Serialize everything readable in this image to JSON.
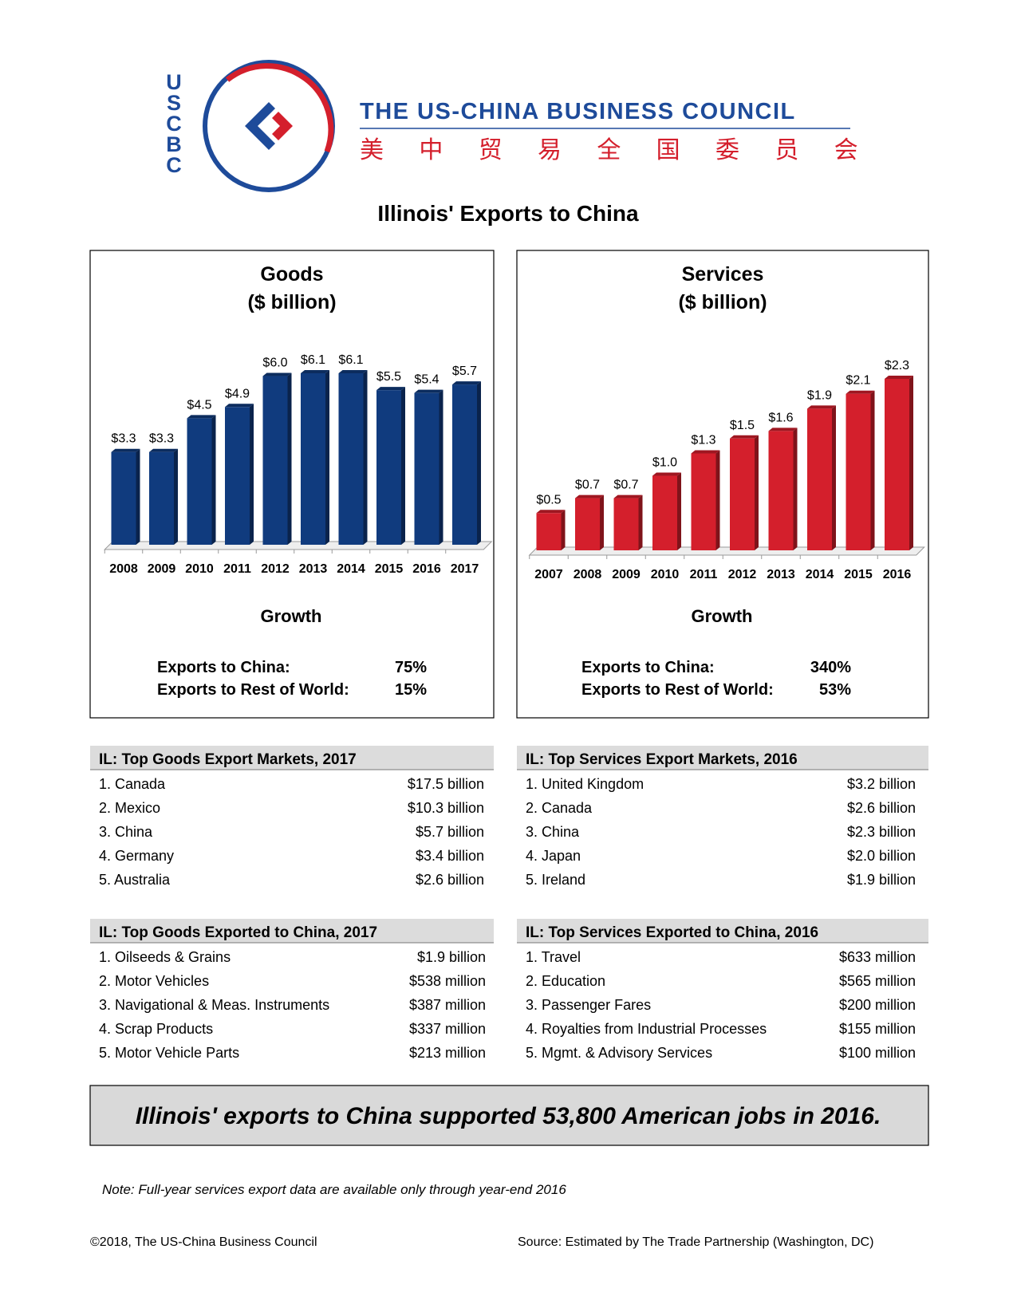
{
  "logo": {
    "letters": [
      "U",
      "S",
      "C",
      "B",
      "C"
    ],
    "name": "THE US-CHINA BUSINESS COUNCIL",
    "chinese": "美 中 贸 易 全 国 委 员 会"
  },
  "title": "Illinois' Exports to China",
  "chart_data": [
    {
      "type": "bar",
      "title": "Goods",
      "subtitle": "($ billion)",
      "color": "#103b7e",
      "categories": [
        "2008",
        "2009",
        "2010",
        "2011",
        "2012",
        "2013",
        "2014",
        "2015",
        "2016",
        "2017"
      ],
      "values": [
        3.3,
        3.3,
        4.5,
        4.9,
        6.0,
        6.1,
        6.1,
        5.5,
        5.4,
        5.7
      ],
      "value_labels": [
        "$3.3",
        "$3.3",
        "$4.5",
        "$4.9",
        "$6.0",
        "$6.1",
        "$6.1",
        "$5.5",
        "$5.4",
        "$5.7"
      ]
    },
    {
      "type": "bar",
      "title": "Services",
      "subtitle": "($ billion)",
      "color": "#d41f2c",
      "categories": [
        "2007",
        "2008",
        "2009",
        "2010",
        "2011",
        "2012",
        "2013",
        "2014",
        "2015",
        "2016"
      ],
      "values": [
        0.5,
        0.7,
        0.7,
        1.0,
        1.3,
        1.5,
        1.6,
        1.9,
        2.1,
        2.3
      ],
      "value_labels": [
        "$0.5",
        "$0.7",
        "$0.7",
        "$1.0",
        "$1.3",
        "$1.5",
        "$1.6",
        "$1.9",
        "$2.1",
        "$2.3"
      ]
    }
  ],
  "growth": [
    {
      "title": "Growth",
      "rows": [
        [
          "Exports to China:",
          "75%"
        ],
        [
          "Exports to Rest of World:",
          "15%"
        ]
      ]
    },
    {
      "title": "Growth",
      "rows": [
        [
          "Exports to China:",
          "340%"
        ],
        [
          "Exports to Rest of World:",
          "53%"
        ]
      ]
    }
  ],
  "tables": [
    {
      "title": "IL: Top Goods Export Markets, 2017",
      "rows": [
        [
          "1. Canada",
          "$17.5 billion"
        ],
        [
          "2. Mexico",
          "$10.3 billion"
        ],
        [
          "3. China",
          "$5.7 billion"
        ],
        [
          "4. Germany",
          "$3.4 billion"
        ],
        [
          "5. Australia",
          "$2.6 billion"
        ]
      ]
    },
    {
      "title": "IL: Top Services Export Markets, 2016",
      "rows": [
        [
          "1. United Kingdom",
          "$3.2 billion"
        ],
        [
          "2. Canada",
          "$2.6 billion"
        ],
        [
          "3. China",
          "$2.3 billion"
        ],
        [
          "4. Japan",
          "$2.0 billion"
        ],
        [
          "5. Ireland",
          "$1.9 billion"
        ]
      ]
    },
    {
      "title": "IL: Top Goods Exported to China, 2017",
      "rows": [
        [
          "1. Oilseeds & Grains",
          "$1.9 billion"
        ],
        [
          "2. Motor Vehicles",
          "$538 million"
        ],
        [
          "3. Navigational & Meas. Instruments",
          "$387 million"
        ],
        [
          "4. Scrap Products",
          "$337 million"
        ],
        [
          "5. Motor Vehicle Parts",
          "$213 million"
        ]
      ]
    },
    {
      "title": "IL: Top Services Exported to China, 2016",
      "rows": [
        [
          "1. Travel",
          "$633 million"
        ],
        [
          "2. Education",
          "$565 million"
        ],
        [
          "3. Passenger Fares",
          "$200 million"
        ],
        [
          "4. Royalties from Industrial Processes",
          "$155 million"
        ],
        [
          "5. Mgmt. & Advisory Services",
          "$100 million"
        ]
      ]
    }
  ],
  "banner": "Illinois' exports to China supported 53,800 American jobs in 2016.",
  "note": "Note: Full-year services export data are available only through year-end 2016",
  "footer": {
    "left": "©2018, The US-China Business Council",
    "right": "Source: Estimated by The Trade Partnership (Washington, DC)"
  }
}
